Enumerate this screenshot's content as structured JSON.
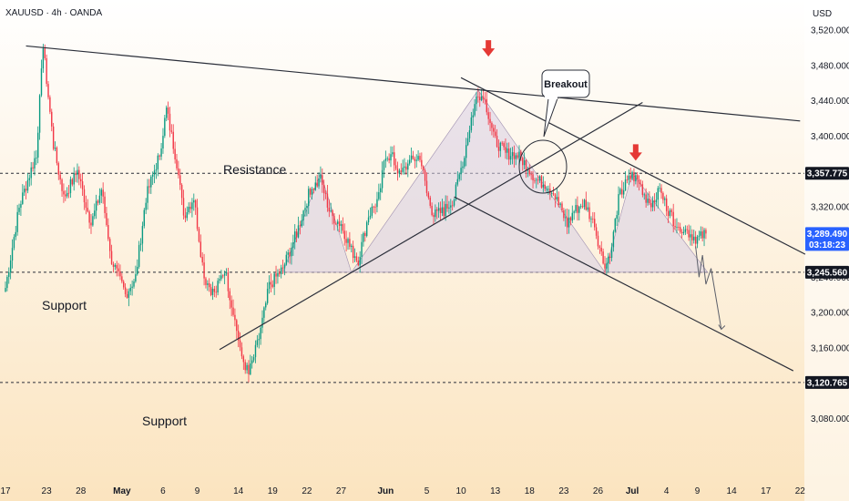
{
  "header": {
    "symbol": "XAUUSD · 4h · OANDA",
    "currency": "USD"
  },
  "chart_data": {
    "type": "candlestick",
    "ylim": [
      3040,
      3560
    ],
    "y_ticks": [
      3080,
      3120,
      3160,
      3200,
      3240,
      3280,
      3320,
      3360,
      3400,
      3440,
      3480,
      3520
    ],
    "y_tick_labels": [
      "3,080.000",
      "3,120.000",
      "3,160.000",
      "3,200.000",
      "3,240.000",
      "3,280.000",
      "3,320.000",
      "3,360.000",
      "3,400.000",
      "3,440.000",
      "3,480.000",
      "3,520.000"
    ],
    "x_ticks": [
      {
        "label": "17",
        "i": 0
      },
      {
        "label": "23",
        "i": 24
      },
      {
        "label": "28",
        "i": 44
      },
      {
        "label": "May",
        "i": 68,
        "bold": true
      },
      {
        "label": "6",
        "i": 92
      },
      {
        "label": "9",
        "i": 112
      },
      {
        "label": "14",
        "i": 136
      },
      {
        "label": "19",
        "i": 156
      },
      {
        "label": "22",
        "i": 176
      },
      {
        "label": "27",
        "i": 196
      },
      {
        "label": "Jun",
        "i": 222,
        "bold": true
      },
      {
        "label": "5",
        "i": 246
      },
      {
        "label": "10",
        "i": 266
      },
      {
        "label": "13",
        "i": 286
      },
      {
        "label": "18",
        "i": 306
      },
      {
        "label": "23",
        "i": 326
      },
      {
        "label": "26",
        "i": 346
      },
      {
        "label": "Jul",
        "i": 366,
        "bold": true
      },
      {
        "label": "4",
        "i": 386
      },
      {
        "label": "9",
        "i": 404
      },
      {
        "label": "14",
        "i": 424
      },
      {
        "label": "17",
        "i": 444
      },
      {
        "label": "22",
        "i": 464
      }
    ],
    "bars": 410,
    "anchors": [
      [
        0,
        3228
      ],
      [
        8,
        3320
      ],
      [
        18,
        3380
      ],
      [
        22,
        3500
      ],
      [
        28,
        3390
      ],
      [
        34,
        3330
      ],
      [
        42,
        3360
      ],
      [
        50,
        3300
      ],
      [
        56,
        3340
      ],
      [
        62,
        3260
      ],
      [
        70,
        3220
      ],
      [
        76,
        3240
      ],
      [
        82,
        3330
      ],
      [
        90,
        3380
      ],
      [
        94,
        3430
      ],
      [
        100,
        3370
      ],
      [
        104,
        3310
      ],
      [
        110,
        3330
      ],
      [
        116,
        3240
      ],
      [
        122,
        3220
      ],
      [
        128,
        3250
      ],
      [
        134,
        3190
      ],
      [
        138,
        3150
      ],
      [
        142,
        3130
      ],
      [
        148,
        3170
      ],
      [
        154,
        3230
      ],
      [
        162,
        3250
      ],
      [
        170,
        3290
      ],
      [
        178,
        3340
      ],
      [
        184,
        3350
      ],
      [
        190,
        3310
      ],
      [
        196,
        3300
      ],
      [
        202,
        3270
      ],
      [
        206,
        3260
      ],
      [
        212,
        3310
      ],
      [
        218,
        3330
      ],
      [
        222,
        3380
      ],
      [
        226,
        3375
      ],
      [
        230,
        3355
      ],
      [
        236,
        3370
      ],
      [
        242,
        3378
      ],
      [
        246,
        3335
      ],
      [
        250,
        3310
      ],
      [
        256,
        3315
      ],
      [
        262,
        3330
      ],
      [
        268,
        3380
      ],
      [
        272,
        3420
      ],
      [
        276,
        3450
      ],
      [
        280,
        3440
      ],
      [
        286,
        3395
      ],
      [
        292,
        3380
      ],
      [
        298,
        3380
      ],
      [
        304,
        3368
      ],
      [
        310,
        3350
      ],
      [
        316,
        3345
      ],
      [
        320,
        3335
      ],
      [
        324,
        3318
      ],
      [
        328,
        3300
      ],
      [
        332,
        3315
      ],
      [
        338,
        3325
      ],
      [
        344,
        3298
      ],
      [
        350,
        3250
      ],
      [
        354,
        3275
      ],
      [
        358,
        3330
      ],
      [
        362,
        3345
      ],
      [
        366,
        3355
      ],
      [
        370,
        3348
      ],
      [
        374,
        3330
      ],
      [
        378,
        3325
      ],
      [
        382,
        3338
      ],
      [
        386,
        3320
      ],
      [
        390,
        3305
      ],
      [
        394,
        3298
      ],
      [
        400,
        3289
      ],
      [
        404,
        3283
      ],
      [
        409,
        3289.49
      ]
    ],
    "price_labels": [
      {
        "value": 3357.775,
        "label": "3,357.775",
        "style": "dark"
      },
      {
        "value": 3289.49,
        "label": "3,289.490",
        "sub": "03:18:23",
        "style": "blue"
      },
      {
        "value": 3245.56,
        "label": "3,245.560",
        "style": "dark"
      },
      {
        "value": 3120.765,
        "label": "3,120.765",
        "style": "dark"
      }
    ],
    "horizontal_lines": [
      3357.775,
      3245.56,
      3120.765
    ],
    "annotations": {
      "resistance": "Resistance",
      "support_upper": "Support",
      "support_lower": "Support",
      "breakout": "Breakout"
    }
  },
  "colors": {
    "up": "#089981",
    "down": "#f23645",
    "line": "#2a2e39",
    "pattern_fill": "#d7cde3",
    "arrow": "#e53935",
    "blue_badge": "#2962ff",
    "dark_badge": "#131722",
    "bg_top": "#ffffff",
    "bg_bottom": "#fbe4bf"
  }
}
